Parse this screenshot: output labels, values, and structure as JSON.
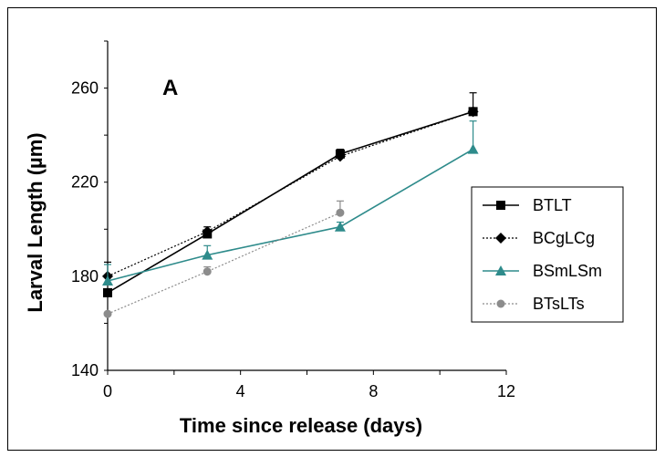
{
  "chart_data": {
    "type": "line",
    "panel_label": "A",
    "xlabel": "Time since release (days)",
    "ylabel": "Larval Length (µm)",
    "xlim": [
      0,
      12
    ],
    "ylim": [
      140,
      280
    ],
    "xticks": [
      0,
      4,
      8,
      12
    ],
    "yticks": [
      140,
      180,
      220,
      260
    ],
    "grid": false,
    "legend_position": "right",
    "series": [
      {
        "name": "BTLT",
        "color": "#000000",
        "marker": "square",
        "line": "solid",
        "points": [
          {
            "x": 0,
            "y": 173,
            "err": 0
          },
          {
            "x": 3,
            "y": 198,
            "err": 3
          },
          {
            "x": 7,
            "y": 232,
            "err": 2
          },
          {
            "x": 11,
            "y": 250,
            "err": 8
          }
        ]
      },
      {
        "name": "BCgLCg",
        "color": "#000000",
        "marker": "diamond",
        "line": "dotted",
        "points": [
          {
            "x": 0,
            "y": 180,
            "err": 6
          },
          {
            "x": 3,
            "y": 199,
            "err": 0
          },
          {
            "x": 7,
            "y": 231,
            "err": 0
          },
          {
            "x": 11,
            "y": 250,
            "err": 0
          }
        ]
      },
      {
        "name": "BSmLSm",
        "color": "#2e8b8b",
        "marker": "triangle",
        "line": "solid",
        "points": [
          {
            "x": 0,
            "y": 178,
            "err": 7
          },
          {
            "x": 3,
            "y": 189,
            "err": 4
          },
          {
            "x": 7,
            "y": 201,
            "err": 2
          },
          {
            "x": 11,
            "y": 234,
            "err": 12
          }
        ]
      },
      {
        "name": "BTsLTs",
        "color": "#8c8c8c",
        "marker": "circle",
        "line": "dotted",
        "points": [
          {
            "x": 0,
            "y": 164,
            "err": 0
          },
          {
            "x": 3,
            "y": 182,
            "err": 2
          },
          {
            "x": 7,
            "y": 207,
            "err": 5
          }
        ]
      }
    ]
  }
}
